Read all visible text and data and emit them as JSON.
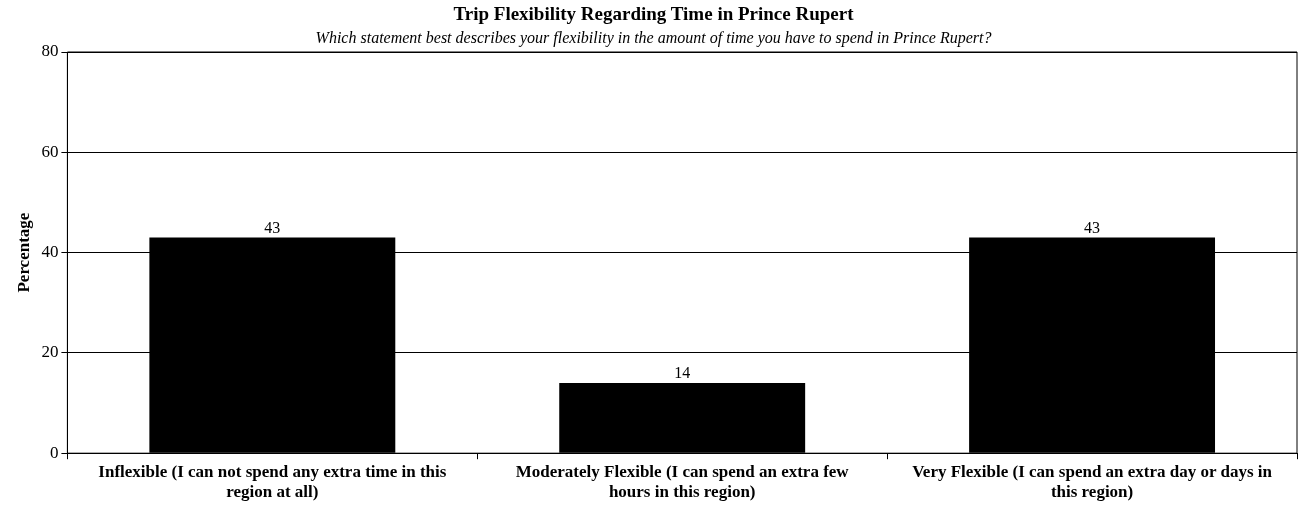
{
  "chart_data": {
    "type": "bar",
    "title": "Trip Flexibility Regarding Time in Prince Rupert",
    "subtitle": "Which statement best describes your flexibility in the amount of time you have to spend in Prince Rupert?",
    "ylabel": "Percentage",
    "categories": [
      "Inflexible (I can not spend any extra time in this region at all)",
      "Moderately Flexible (I can spend an extra few hours in this region)",
      "Very Flexible (I can spend an extra day or days in this region)"
    ],
    "values": [
      43,
      14,
      43
    ],
    "color": "#000000",
    "ylim": [
      0,
      80
    ],
    "yticks": [
      0,
      20,
      40,
      60,
      80
    ],
    "grid": "y",
    "legend": false,
    "data_labels": true
  }
}
